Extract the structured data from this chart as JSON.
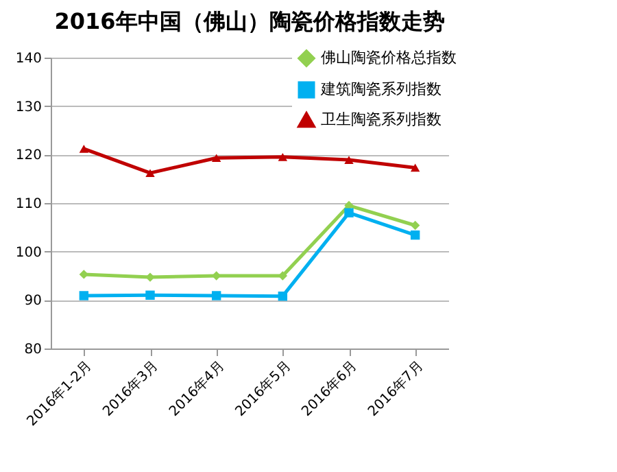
{
  "chart_data": {
    "type": "line",
    "title": "2016年中国（佛山）陶瓷价格指数走势",
    "categories": [
      "2016年1-2月",
      "2016年3月",
      "2016年4月",
      "2016年5月",
      "2016年6月",
      "2016年7月"
    ],
    "series": [
      {
        "name": "佛山陶瓷价格总指数",
        "color": "#92d050",
        "marker": "diamond",
        "values": [
          95.3,
          94.7,
          95.0,
          95.0,
          109.5,
          105.4
        ]
      },
      {
        "name": "建筑陶瓷系列指数",
        "color": "#00b0f0",
        "marker": "square",
        "values": [
          90.9,
          91.0,
          90.9,
          90.8,
          108.0,
          103.4
        ]
      },
      {
        "name": "卫生陶瓷系列指数",
        "color": "#c00000",
        "marker": "triangle",
        "values": [
          121.2,
          116.2,
          119.3,
          119.5,
          118.9,
          117.3
        ]
      }
    ],
    "ylim": [
      80,
      140
    ],
    "yticks": [
      80,
      90,
      100,
      110,
      120,
      130,
      140
    ],
    "grid": "y",
    "legend": "top right"
  }
}
